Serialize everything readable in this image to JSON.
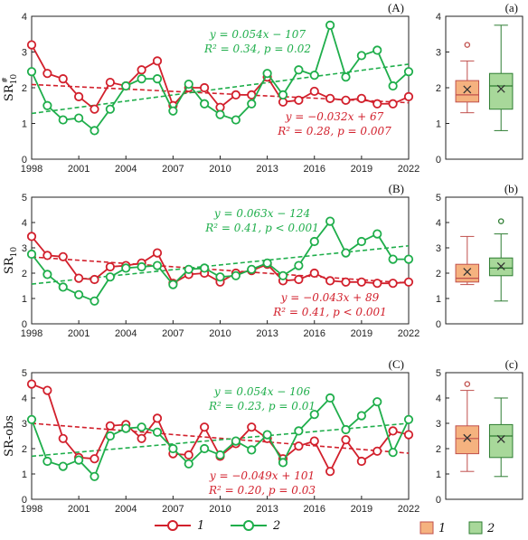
{
  "colors": {
    "series1": "#d2202c",
    "series2": "#1fae4b",
    "box1_fill": "#f5b27f",
    "box1_stroke": "#c0504d",
    "box2_fill": "#a8d89a",
    "box2_stroke": "#2e7d32"
  },
  "legend": {
    "item1": "1",
    "item2": "2"
  },
  "chart_data": [
    {
      "type": "line",
      "panel_label": "(A)",
      "ylabel": "SR",
      "ylabel_sub": "10",
      "ylabel_sup": "#",
      "xlim": [
        1998,
        2022
      ],
      "ylim": [
        0,
        4
      ],
      "xticks": [
        "1998",
        "2001",
        "2004",
        "2007",
        "2010",
        "2013",
        "2016",
        "2019",
        "2022"
      ],
      "yticks": [
        "0",
        "1",
        "2",
        "3",
        "4"
      ],
      "x": [
        1998,
        1999,
        2000,
        2001,
        2002,
        2003,
        2004,
        2005,
        2006,
        2007,
        2008,
        2009,
        2010,
        2011,
        2012,
        2013,
        2014,
        2015,
        2016,
        2017,
        2018,
        2019,
        2020,
        2021,
        2022
      ],
      "series": [
        {
          "name": "1",
          "values": [
            3.2,
            2.4,
            2.25,
            1.75,
            1.4,
            2.15,
            2.05,
            2.5,
            2.75,
            1.5,
            2.0,
            2.0,
            1.45,
            1.8,
            1.8,
            2.3,
            1.6,
            1.65,
            1.9,
            1.7,
            1.65,
            1.7,
            1.55,
            1.55,
            1.75
          ]
        },
        {
          "name": "2",
          "values": [
            2.45,
            1.5,
            1.1,
            1.15,
            0.8,
            1.4,
            2.05,
            2.25,
            2.25,
            1.35,
            2.1,
            1.55,
            1.25,
            1.1,
            1.55,
            2.4,
            1.8,
            2.5,
            2.35,
            3.75,
            2.3,
            2.9,
            3.05,
            2.05,
            2.45
          ]
        }
      ],
      "trend1": {
        "x": [
          1998,
          2022
        ],
        "y": [
          2.09,
          1.58
        ]
      },
      "trend2": {
        "x": [
          1998,
          2022
        ],
        "y": [
          1.28,
          2.66
        ]
      },
      "annotation2": {
        "line1": "y = 0.054x − 107",
        "line2": "R² = 0.34, p = 0.02"
      },
      "annotation1": {
        "line1": "y = −0.032x + 67",
        "line2": "R² = 0.28, p = 0.007"
      }
    },
    {
      "type": "line",
      "panel_label": "(B)",
      "ylabel": "SR",
      "ylabel_sub": "10",
      "ylabel_sup": "",
      "xlim": [
        1998,
        2022
      ],
      "ylim": [
        0,
        5
      ],
      "xticks": [
        "1998",
        "2001",
        "2004",
        "2007",
        "2010",
        "2013",
        "2016",
        "2019",
        "2022"
      ],
      "yticks": [
        "0",
        "1",
        "2",
        "3",
        "4",
        "5"
      ],
      "x": [
        1998,
        1999,
        2000,
        2001,
        2002,
        2003,
        2004,
        2005,
        2006,
        2007,
        2008,
        2009,
        2010,
        2011,
        2012,
        2013,
        2014,
        2015,
        2016,
        2017,
        2018,
        2019,
        2020,
        2021,
        2022
      ],
      "series": [
        {
          "name": "1",
          "values": [
            3.45,
            2.7,
            2.65,
            1.8,
            1.75,
            2.25,
            2.3,
            2.4,
            2.8,
            1.6,
            1.95,
            2.0,
            1.65,
            2.0,
            2.1,
            2.35,
            1.7,
            1.75,
            2.0,
            1.7,
            1.65,
            1.65,
            1.6,
            1.6,
            1.65
          ]
        },
        {
          "name": "2",
          "values": [
            2.75,
            1.95,
            1.45,
            1.15,
            0.9,
            1.85,
            2.2,
            2.25,
            2.3,
            1.55,
            2.15,
            2.2,
            1.85,
            1.9,
            2.15,
            2.4,
            1.9,
            2.3,
            3.25,
            4.05,
            2.8,
            3.25,
            3.55,
            2.55,
            2.55
          ]
        }
      ],
      "trend1": {
        "x": [
          1998,
          2022
        ],
        "y": [
          2.64,
          1.61
        ]
      },
      "trend2": {
        "x": [
          1998,
          2022
        ],
        "y": [
          1.57,
          3.08
        ]
      },
      "annotation2": {
        "line1": "y = 0.063x − 124",
        "line2": "R² = 0.41, p < 0.001"
      },
      "annotation1": {
        "line1": "y = −0.043x + 89",
        "line2": "R² = 0.41, p < 0.001"
      }
    },
    {
      "type": "line",
      "panel_label": "(C)",
      "ylabel": "SR-obs",
      "ylabel_sub": "",
      "ylabel_sup": "",
      "xlim": [
        1998,
        2022
      ],
      "ylim": [
        0,
        5
      ],
      "xticks": [
        "1998",
        "2001",
        "2004",
        "2007",
        "2010",
        "2013",
        "2016",
        "2019",
        "2022"
      ],
      "yticks": [
        "0",
        "1",
        "2",
        "3",
        "4",
        "5"
      ],
      "x": [
        1998,
        1999,
        2000,
        2001,
        2002,
        2003,
        2004,
        2005,
        2006,
        2007,
        2008,
        2009,
        2010,
        2011,
        2012,
        2013,
        2014,
        2015,
        2016,
        2017,
        2018,
        2019,
        2020,
        2021,
        2022
      ],
      "series": [
        {
          "name": "1",
          "values": [
            4.55,
            4.3,
            2.4,
            1.65,
            1.6,
            2.9,
            2.95,
            2.4,
            3.2,
            1.8,
            1.75,
            2.85,
            1.7,
            2.2,
            2.85,
            2.4,
            1.6,
            2.1,
            2.3,
            1.1,
            2.35,
            1.5,
            1.9,
            2.7,
            2.55
          ]
        },
        {
          "name": "2",
          "values": [
            3.15,
            1.5,
            1.3,
            1.55,
            0.9,
            2.5,
            2.8,
            2.85,
            2.65,
            2.0,
            1.4,
            2.0,
            1.75,
            2.3,
            1.95,
            2.55,
            1.45,
            2.7,
            3.35,
            4.0,
            2.75,
            3.3,
            3.85,
            1.85,
            3.15
          ]
        }
      ],
      "trend1": {
        "x": [
          1998,
          2022
        ],
        "y": [
          3.0,
          1.82
        ]
      },
      "trend2": {
        "x": [
          1998,
          2022
        ],
        "y": [
          1.7,
          3.0
        ]
      },
      "annotation2": {
        "line1": "y = 0.054x − 106",
        "line2": "R² = 0.23, p = 0.01"
      },
      "annotation1": {
        "line1": "y = −0.049x + 101",
        "line2": "R² = 0.20, p = 0.03"
      }
    },
    {
      "type": "box",
      "panel_label": "(a)",
      "ylim": [
        0,
        4
      ],
      "yticks": [
        "0",
        "1",
        "2",
        "3",
        "4"
      ],
      "boxes": [
        {
          "name": "1",
          "whisker_low": 1.3,
          "q1": 1.6,
          "median": 1.8,
          "q3": 2.2,
          "whisker_high": 2.75,
          "mean": 1.95,
          "outliers": [
            3.2
          ]
        },
        {
          "name": "2",
          "whisker_low": 0.8,
          "q1": 1.4,
          "median": 2.05,
          "q3": 2.4,
          "whisker_high": 3.75,
          "mean": 1.97,
          "outliers": []
        }
      ]
    },
    {
      "type": "box",
      "panel_label": "(b)",
      "ylim": [
        0,
        5
      ],
      "yticks": [
        "0",
        "1",
        "2",
        "3",
        "4",
        "5"
      ],
      "boxes": [
        {
          "name": "1",
          "whisker_low": 1.55,
          "q1": 1.65,
          "median": 1.8,
          "q3": 2.35,
          "whisker_high": 3.45,
          "mean": 2.05,
          "outliers": []
        },
        {
          "name": "2",
          "whisker_low": 0.9,
          "q1": 1.9,
          "median": 2.2,
          "q3": 2.6,
          "whisker_high": 3.55,
          "mean": 2.27,
          "outliers": [
            4.05
          ]
        }
      ]
    },
    {
      "type": "box",
      "panel_label": "(c)",
      "ylim": [
        0,
        5
      ],
      "yticks": [
        "0",
        "1",
        "2",
        "3",
        "4",
        "5"
      ],
      "boxes": [
        {
          "name": "1",
          "whisker_low": 1.1,
          "q1": 1.8,
          "median": 2.4,
          "q3": 2.9,
          "whisker_high": 4.3,
          "mean": 2.42,
          "outliers": [
            4.55
          ]
        },
        {
          "name": "2",
          "whisker_low": 0.9,
          "q1": 1.65,
          "median": 2.5,
          "q3": 2.95,
          "whisker_high": 4.0,
          "mean": 2.38,
          "outliers": []
        }
      ]
    }
  ]
}
